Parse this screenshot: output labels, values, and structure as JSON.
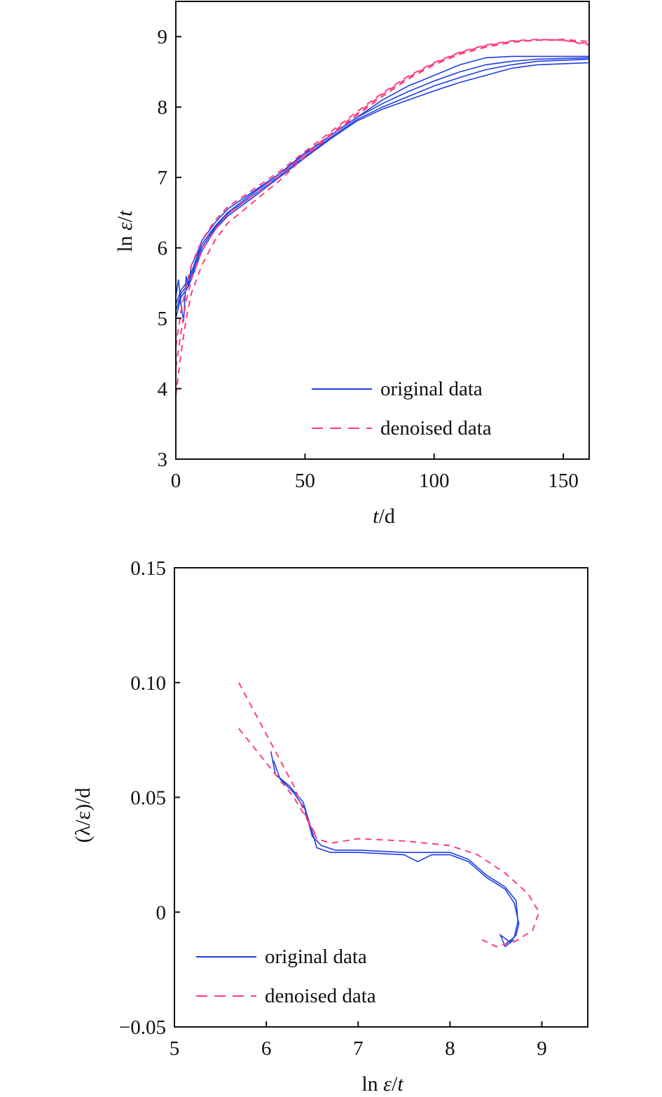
{
  "chart_data": [
    {
      "type": "line",
      "xlabel": {
        "var": "t",
        "unit": "/d"
      },
      "ylabel": {
        "prefix": "ln ",
        "num": "ε",
        "sep": "/",
        "den": "t"
      },
      "xlim": [
        0,
        160
      ],
      "ylim": [
        3,
        9.5
      ],
      "xticks": [
        0,
        50,
        100,
        150
      ],
      "yticks": [
        3,
        4,
        5,
        6,
        7,
        8,
        9
      ],
      "grid": false,
      "legend_placement": "bottom-right",
      "series": [
        {
          "name": "original data",
          "color": "#1f3fe0",
          "style": "solid",
          "curves": [
            {
              "x": [
                0,
                1,
                2,
                3,
                4,
                5,
                6,
                8,
                10,
                15,
                20,
                30,
                40,
                50,
                60,
                70,
                80,
                90,
                100,
                110,
                120,
                130,
                140,
                160
              ],
              "y": [
                5.3,
                5.55,
                5.2,
                4.95,
                5.6,
                5.45,
                5.75,
                5.9,
                6.1,
                6.35,
                6.55,
                6.8,
                7.05,
                7.35,
                7.6,
                7.85,
                8.1,
                8.3,
                8.45,
                8.6,
                8.7,
                8.72,
                8.72,
                8.72
              ]
            },
            {
              "x": [
                0,
                2,
                4,
                6,
                8,
                10,
                15,
                20,
                30,
                40,
                50,
                60,
                70,
                80,
                90,
                100,
                110,
                120,
                130,
                140,
                160
              ],
              "y": [
                5.2,
                5.4,
                5.5,
                5.65,
                5.85,
                6.05,
                6.3,
                6.5,
                6.78,
                7.05,
                7.33,
                7.6,
                7.85,
                8.05,
                8.22,
                8.37,
                8.5,
                8.6,
                8.65,
                8.68,
                8.7
              ]
            },
            {
              "x": [
                0,
                2,
                4,
                6,
                8,
                10,
                15,
                20,
                30,
                40,
                50,
                60,
                70,
                80,
                90,
                100,
                110,
                120,
                130,
                140,
                160
              ],
              "y": [
                5.1,
                5.35,
                5.45,
                5.6,
                5.8,
                6.0,
                6.28,
                6.48,
                6.75,
                7.02,
                7.3,
                7.57,
                7.82,
                8.0,
                8.15,
                8.3,
                8.42,
                8.53,
                8.6,
                8.65,
                8.68
              ]
            },
            {
              "x": [
                0,
                2,
                4,
                6,
                8,
                10,
                15,
                20,
                30,
                40,
                50,
                60,
                70,
                80,
                90,
                100,
                110,
                120,
                130,
                140,
                160
              ],
              "y": [
                5.0,
                5.3,
                5.4,
                5.55,
                5.75,
                5.95,
                6.25,
                6.45,
                6.72,
                7.0,
                7.28,
                7.55,
                7.8,
                7.97,
                8.1,
                8.23,
                8.35,
                8.45,
                8.55,
                8.6,
                8.63
              ]
            }
          ]
        },
        {
          "name": "denoised data",
          "color": "#ff3d7f",
          "style": "dashed",
          "curves": [
            {
              "x": [
                0,
                2,
                4,
                6,
                10,
                15,
                20,
                30,
                40,
                50,
                60,
                70,
                80,
                90,
                100,
                110,
                120,
                130,
                140,
                150,
                160
              ],
              "y": [
                3.9,
                4.5,
                5.0,
                5.35,
                5.75,
                6.1,
                6.35,
                6.65,
                6.95,
                7.3,
                7.6,
                7.88,
                8.15,
                8.4,
                8.6,
                8.75,
                8.85,
                8.92,
                8.95,
                8.96,
                8.93
              ]
            },
            {
              "x": [
                0,
                2,
                4,
                6,
                10,
                15,
                20,
                30,
                40,
                50,
                60,
                70,
                80,
                90,
                100,
                110,
                120,
                130,
                140,
                150,
                160
              ],
              "y": [
                4.3,
                4.8,
                5.25,
                5.55,
                5.95,
                6.25,
                6.48,
                6.75,
                7.02,
                7.33,
                7.62,
                7.9,
                8.18,
                8.42,
                8.62,
                8.77,
                8.87,
                8.93,
                8.95,
                8.95,
                8.9
              ]
            },
            {
              "x": [
                0,
                2,
                4,
                6,
                10,
                15,
                20,
                30,
                40,
                50,
                60,
                70,
                80,
                90,
                100,
                110,
                120,
                130,
                140,
                150,
                160
              ],
              "y": [
                4.6,
                5.1,
                5.45,
                5.75,
                6.1,
                6.38,
                6.58,
                6.83,
                7.08,
                7.37,
                7.65,
                7.93,
                8.2,
                8.44,
                8.63,
                8.78,
                8.88,
                8.94,
                8.96,
                8.95,
                8.88
              ]
            }
          ]
        }
      ]
    },
    {
      "type": "line",
      "xlabel": {
        "prefix": "ln ",
        "num": "ε",
        "sep": "/",
        "den": "t"
      },
      "ylabel": "(λ/ε)/d",
      "xlim": [
        5,
        9.5
      ],
      "ylim": [
        -0.05,
        0.15
      ],
      "xticks": [
        5,
        6,
        7,
        8,
        9
      ],
      "xtick_labels": [
        "5",
        "6",
        "7",
        "8",
        "9"
      ],
      "yticks": [
        -0.05,
        0,
        0.05,
        0.1,
        0.15
      ],
      "ytick_labels": [
        "−0.05",
        "0",
        "0.05",
        "0.10",
        "0.15"
      ],
      "grid": false,
      "legend_placement": "bottom-left",
      "series": [
        {
          "name": "original data",
          "color": "#1f3fe0",
          "style": "solid",
          "curves": [
            {
              "x": [
                6.05,
                6.1,
                6.25,
                6.4,
                6.5,
                6.55,
                6.7,
                7.0,
                7.5,
                7.65,
                7.8,
                8.0,
                8.2,
                8.4,
                8.6,
                8.7,
                8.75,
                8.72,
                8.65,
                8.55,
                8.6,
                8.7
              ],
              "y": [
                0.07,
                0.06,
                0.055,
                0.048,
                0.035,
                0.028,
                0.026,
                0.026,
                0.025,
                0.022,
                0.025,
                0.025,
                0.022,
                0.015,
                0.01,
                0.004,
                -0.005,
                -0.01,
                -0.013,
                -0.01,
                -0.015,
                -0.012
              ]
            },
            {
              "x": [
                6.08,
                6.15,
                6.3,
                6.42,
                6.5,
                6.6,
                6.75,
                7.0,
                7.5,
                8.0,
                8.2,
                8.4,
                8.6,
                8.72,
                8.74,
                8.7,
                8.6
              ],
              "y": [
                0.066,
                0.058,
                0.052,
                0.045,
                0.033,
                0.029,
                0.027,
                0.027,
                0.026,
                0.026,
                0.023,
                0.016,
                0.011,
                0.005,
                -0.004,
                -0.011,
                -0.014
              ]
            }
          ]
        },
        {
          "name": "denoised data",
          "color": "#ff3d7f",
          "style": "dashed",
          "curves": [
            {
              "x": [
                5.7,
                5.9,
                6.1,
                6.3,
                6.45,
                6.55,
                6.7,
                7.0,
                7.5,
                8.0,
                8.3,
                8.6,
                8.85,
                8.97,
                8.9,
                8.7,
                8.5,
                8.35
              ],
              "y": [
                0.1,
                0.085,
                0.07,
                0.055,
                0.04,
                0.032,
                0.03,
                0.032,
                0.031,
                0.029,
                0.025,
                0.017,
                0.008,
                0.0,
                -0.008,
                -0.013,
                -0.015,
                -0.012
              ]
            },
            {
              "x": [
                5.7,
                5.9,
                6.1,
                6.3,
                6.45,
                6.55
              ],
              "y": [
                0.08,
                0.07,
                0.06,
                0.05,
                0.04,
                0.033
              ]
            }
          ]
        }
      ]
    }
  ]
}
